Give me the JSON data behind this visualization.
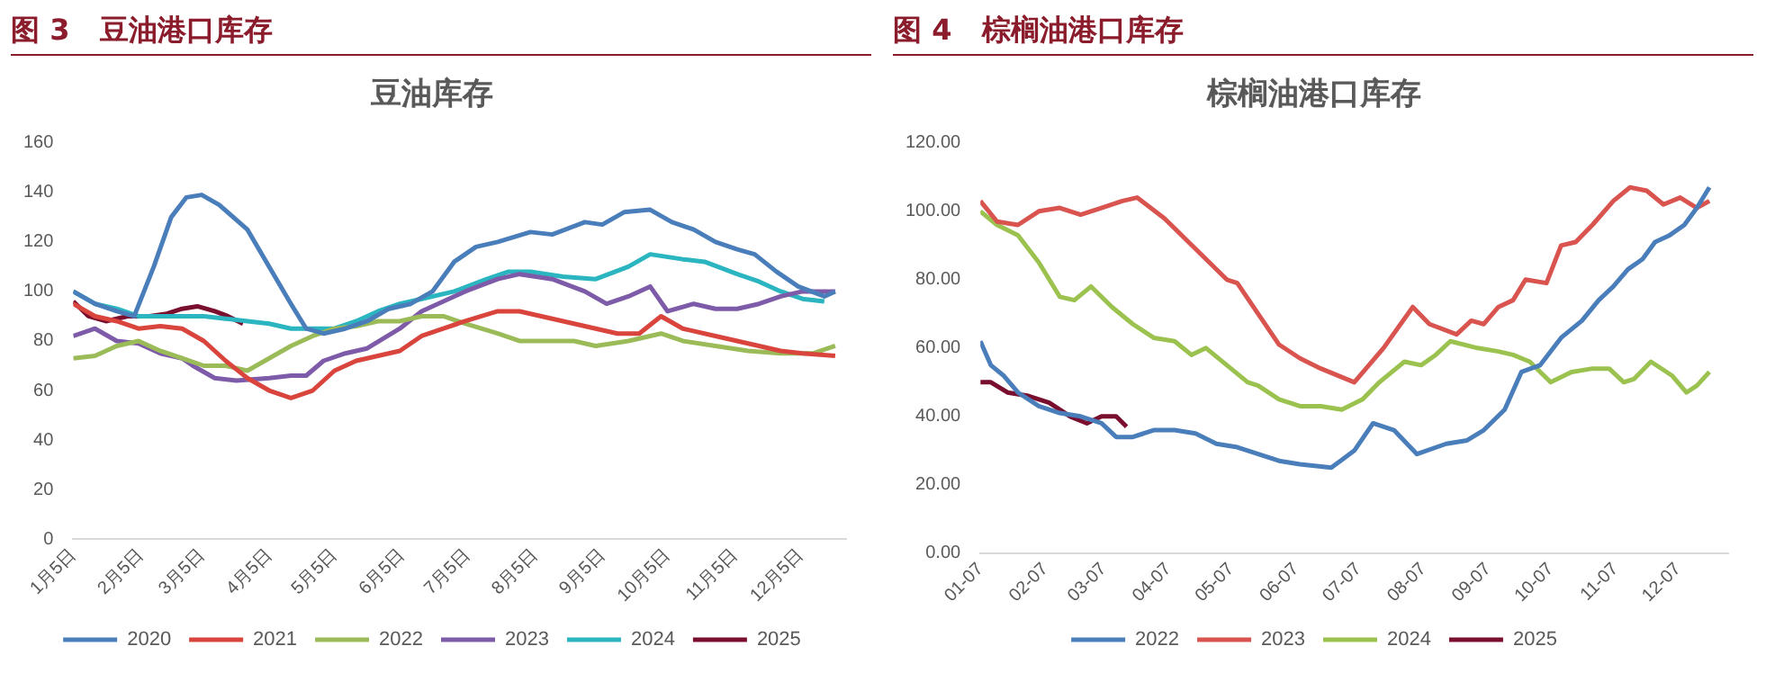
{
  "chart_data": [
    {
      "type": "line",
      "title": "图 3   豆油港口库存",
      "subtitle": "豆油库存",
      "legend": "bottom",
      "marker": "none",
      "line_style": "solid",
      "xlim": [
        "--01-05",
        "--12-26"
      ],
      "xticks": [
        {
          "value": "--01-05",
          "label": "1月5日"
        },
        {
          "value": "--02-05",
          "label": "2月5日"
        },
        {
          "value": "--03-05",
          "label": "3月5日"
        },
        {
          "value": "--04-05",
          "label": "4月5日"
        },
        {
          "value": "--05-05",
          "label": "5月5日"
        },
        {
          "value": "--06-05",
          "label": "6月5日"
        },
        {
          "value": "--07-05",
          "label": "7月5日"
        },
        {
          "value": "--08-05",
          "label": "8月5日"
        },
        {
          "value": "--09-05",
          "label": "9月5日"
        },
        {
          "value": "--10-05",
          "label": "10月5日"
        },
        {
          "value": "--11-05",
          "label": "11月5日"
        },
        {
          "value": "--12-05",
          "label": "12月5日"
        }
      ],
      "ylim": [
        0,
        160
      ],
      "yticks": [
        0,
        20,
        40,
        60,
        80,
        100,
        120,
        140,
        160
      ],
      "series": [
        {
          "name": "2020",
          "color": "#4a7ebb",
          "x": [
            "--01-05",
            "--01-15",
            "--01-25",
            "--02-02",
            "--02-11",
            "--02-19",
            "--02-26",
            "--03-05",
            "--03-13",
            "--03-26",
            "--04-05",
            "--04-15",
            "--04-22",
            "--04-30",
            "--05-10",
            "--05-20",
            "--05-30",
            "--06-09",
            "--06-19",
            "--06-29",
            "--07-09",
            "--07-19",
            "--08-03",
            "--08-13",
            "--08-28",
            "--09-05",
            "--09-15",
            "--09-27",
            "--10-07",
            "--10-17",
            "--10-27",
            "--11-06",
            "--11-14",
            "--11-24",
            "--12-04",
            "--12-16",
            "--12-21"
          ],
          "values": [
            100,
            95,
            92,
            90,
            110,
            130,
            138,
            139,
            135,
            125,
            110,
            95,
            85,
            83,
            85,
            88,
            93,
            95,
            100,
            112,
            118,
            120,
            124,
            123,
            128,
            127,
            132,
            133,
            128,
            125,
            120,
            117,
            115,
            108,
            102,
            98,
            100
          ]
        },
        {
          "name": "2021",
          "color": "#d9443d",
          "x": [
            "--01-05",
            "--01-15",
            "--01-25",
            "--02-04",
            "--02-14",
            "--02-24",
            "--03-06",
            "--03-16",
            "--03-26",
            "--04-05",
            "--04-15",
            "--04-25",
            "--05-05",
            "--05-15",
            "--05-25",
            "--06-04",
            "--06-14",
            "--06-24",
            "--07-04",
            "--07-19",
            "--07-29",
            "--08-13",
            "--08-28",
            "--09-12",
            "--09-22",
            "--10-02",
            "--10-12",
            "--10-27",
            "--11-06",
            "--11-16",
            "--11-26",
            "--12-06",
            "--12-21"
          ],
          "values": [
            95,
            90,
            88,
            85,
            86,
            85,
            80,
            72,
            65,
            60,
            57,
            60,
            68,
            72,
            74,
            76,
            82,
            85,
            88,
            92,
            92,
            89,
            86,
            83,
            83,
            90,
            85,
            82,
            80,
            78,
            76,
            75,
            74
          ]
        },
        {
          "name": "2022",
          "color": "#9bbb59",
          "x": [
            "--01-05",
            "--01-15",
            "--01-25",
            "--02-04",
            "--02-14",
            "--02-24",
            "--03-06",
            "--03-16",
            "--03-26",
            "--04-05",
            "--04-15",
            "--04-25",
            "--05-05",
            "--05-15",
            "--05-25",
            "--06-04",
            "--06-14",
            "--06-24",
            "--07-04",
            "--07-19",
            "--07-29",
            "--08-08",
            "--08-23",
            "--09-02",
            "--09-17",
            "--10-02",
            "--10-12",
            "--10-27",
            "--11-11",
            "--11-26",
            "--12-11",
            "--12-21"
          ],
          "values": [
            73,
            74,
            78,
            80,
            76,
            73,
            70,
            70,
            68,
            73,
            78,
            82,
            85,
            86,
            88,
            88,
            90,
            90,
            87,
            83,
            80,
            80,
            80,
            78,
            80,
            83,
            80,
            78,
            76,
            75,
            75,
            78
          ]
        },
        {
          "name": "2023",
          "color": "#7e5ba8",
          "x": [
            "--01-05",
            "--01-15",
            "--01-25",
            "--02-04",
            "--02-14",
            "--02-24",
            "--03-01",
            "--03-11",
            "--03-21",
            "--04-05",
            "--04-15",
            "--04-22",
            "--04-30",
            "--05-10",
            "--05-20",
            "--06-04",
            "--06-14",
            "--06-24",
            "--07-04",
            "--07-19",
            "--07-29",
            "--08-13",
            "--08-28",
            "--09-07",
            "--09-17",
            "--09-27",
            "--10-05",
            "--10-17",
            "--10-27",
            "--11-06",
            "--11-16",
            "--11-26",
            "--12-06",
            "--12-21"
          ],
          "values": [
            82,
            85,
            80,
            79,
            75,
            73,
            70,
            65,
            64,
            65,
            66,
            66,
            72,
            75,
            77,
            85,
            92,
            96,
            100,
            105,
            107,
            105,
            100,
            95,
            98,
            102,
            92,
            95,
            93,
            93,
            95,
            98,
            100,
            100
          ]
        },
        {
          "name": "2024",
          "color": "#2ab5c0",
          "x": [
            "--01-05",
            "--01-15",
            "--01-25",
            "--02-04",
            "--02-14",
            "--02-24",
            "--03-06",
            "--03-16",
            "--03-26",
            "--04-05",
            "--04-15",
            "--04-25",
            "--05-05",
            "--05-15",
            "--05-25",
            "--06-04",
            "--06-14",
            "--06-29",
            "--07-14",
            "--07-24",
            "--08-03",
            "--08-18",
            "--09-02",
            "--09-17",
            "--09-27",
            "--10-12",
            "--10-22",
            "--11-06",
            "--11-16",
            "--11-26",
            "--12-06",
            "--12-16"
          ],
          "values": [
            100,
            95,
            93,
            90,
            90,
            90,
            90,
            89,
            88,
            87,
            85,
            85,
            85,
            88,
            92,
            95,
            97,
            100,
            105,
            108,
            108,
            106,
            105,
            110,
            115,
            113,
            112,
            107,
            104,
            100,
            97,
            96
          ]
        },
        {
          "name": "2025",
          "color": "#7a0e2e",
          "x": [
            "--01-05",
            "--01-12",
            "--01-20",
            "--01-30",
            "--02-09",
            "--02-17",
            "--02-24",
            "--03-03",
            "--03-11",
            "--03-17",
            "--03-24"
          ],
          "values": [
            96,
            90,
            88,
            90,
            90,
            91,
            93,
            94,
            92,
            90,
            87
          ]
        }
      ]
    },
    {
      "type": "line",
      "title": "图 4   棕榈油港口库存",
      "subtitle": "棕榈油港口库存",
      "legend": "bottom",
      "marker": "none",
      "line_style": "solid",
      "xlim": [
        "--01-07",
        "--12-31"
      ],
      "xticks": [
        {
          "value": "--01-07",
          "label": "01-07"
        },
        {
          "value": "--02-07",
          "label": "02-07"
        },
        {
          "value": "--03-07",
          "label": "03-07"
        },
        {
          "value": "--04-07",
          "label": "04-07"
        },
        {
          "value": "--05-07",
          "label": "05-07"
        },
        {
          "value": "--06-07",
          "label": "06-07"
        },
        {
          "value": "--07-07",
          "label": "07-07"
        },
        {
          "value": "--08-07",
          "label": "08-07"
        },
        {
          "value": "--09-07",
          "label": "09-07"
        },
        {
          "value": "--10-07",
          "label": "10-07"
        },
        {
          "value": "--11-07",
          "label": "11-07"
        },
        {
          "value": "--12-07",
          "label": "12-07"
        }
      ],
      "ylim": [
        0,
        120
      ],
      "yticks": [
        {
          "value": 0,
          "label": "0.00"
        },
        {
          "value": 20,
          "label": "20.00"
        },
        {
          "value": 40,
          "label": "40.00"
        },
        {
          "value": 60,
          "label": "60.00"
        },
        {
          "value": 80,
          "label": "80.00"
        },
        {
          "value": 100,
          "label": "100.00"
        },
        {
          "value": 120,
          "label": "120.00"
        }
      ],
      "series": [
        {
          "name": "2022",
          "color": "#4a7ebb",
          "x": [
            "--01-07",
            "--01-12",
            "--01-18",
            "--01-25",
            "--02-04",
            "--02-14",
            "--02-24",
            "--03-06",
            "--03-13",
            "--03-21",
            "--03-31",
            "--04-10",
            "--04-20",
            "--04-30",
            "--05-10",
            "--05-20",
            "--05-30",
            "--06-09",
            "--06-24",
            "--07-05",
            "--07-14",
            "--07-24",
            "--08-04",
            "--08-18",
            "--08-28",
            "--09-05",
            "--09-15",
            "--09-23",
            "--10-02",
            "--10-12",
            "--10-22",
            "--10-30",
            "--11-06",
            "--11-13",
            "--11-20",
            "--11-26",
            "--12-03",
            "--12-10",
            "--12-16",
            "--12-22"
          ],
          "values": [
            62,
            55,
            52,
            47,
            43,
            41,
            40,
            38,
            34,
            34,
            36,
            36,
            35,
            32,
            31,
            29,
            27,
            26,
            25,
            30,
            38,
            36,
            29,
            32,
            33,
            36,
            42,
            53,
            55,
            63,
            68,
            74,
            78,
            83,
            86,
            91,
            93,
            96,
            101,
            107
          ]
        },
        {
          "name": "2023",
          "color": "#d9534f",
          "x": [
            "--01-07",
            "--01-15",
            "--01-25",
            "--02-04",
            "--02-14",
            "--02-24",
            "--03-06",
            "--03-16",
            "--03-23",
            "--04-05",
            "--04-15",
            "--04-25",
            "--05-05",
            "--05-10",
            "--05-20",
            "--05-30",
            "--06-09",
            "--06-19",
            "--07-05",
            "--07-12",
            "--07-19",
            "--08-02",
            "--08-10",
            "--08-23",
            "--08-30",
            "--09-05",
            "--09-12",
            "--09-19",
            "--09-25",
            "--10-05",
            "--10-12",
            "--10-19",
            "--10-27",
            "--11-06",
            "--11-14",
            "--11-22",
            "--11-30",
            "--12-08",
            "--12-16",
            "--12-22"
          ],
          "values": [
            103,
            97,
            96,
            100,
            101,
            99,
            101,
            103,
            104,
            98,
            92,
            86,
            80,
            79,
            70,
            61,
            57,
            54,
            50,
            55,
            60,
            72,
            67,
            64,
            68,
            67,
            72,
            74,
            80,
            79,
            90,
            91,
            96,
            103,
            107,
            106,
            102,
            104,
            101,
            103
          ]
        },
        {
          "name": "2024",
          "color": "#9bc24f",
          "x": [
            "--01-07",
            "--01-15",
            "--01-25",
            "--02-04",
            "--02-14",
            "--02-21",
            "--03-01",
            "--03-11",
            "--03-21",
            "--03-31",
            "--04-10",
            "--04-18",
            "--04-25",
            "--05-05",
            "--05-15",
            "--05-20",
            "--05-30",
            "--06-09",
            "--06-19",
            "--06-29",
            "--07-09",
            "--07-17",
            "--07-29",
            "--08-06",
            "--08-13",
            "--08-20",
            "--09-02",
            "--09-12",
            "--09-19",
            "--09-27",
            "--10-07",
            "--10-17",
            "--10-27",
            "--11-04",
            "--11-11",
            "--11-16",
            "--11-24",
            "--12-04",
            "--12-11",
            "--12-16",
            "--12-22"
          ],
          "values": [
            100,
            96,
            93,
            85,
            75,
            74,
            78,
            72,
            67,
            63,
            62,
            58,
            60,
            55,
            50,
            49,
            45,
            43,
            43,
            42,
            45,
            50,
            56,
            55,
            58,
            62,
            60,
            59,
            58,
            56,
            50,
            53,
            54,
            54,
            50,
            51,
            56,
            52,
            47,
            49,
            53
          ]
        },
        {
          "name": "2025",
          "color": "#7a0e2e",
          "x": [
            "--01-07",
            "--01-12",
            "--01-20",
            "--01-30",
            "--02-09",
            "--02-19",
            "--02-27",
            "--03-06",
            "--03-13",
            "--03-18"
          ],
          "values": [
            50,
            50,
            47,
            46,
            44,
            40,
            38,
            40,
            40,
            37
          ]
        }
      ]
    }
  ]
}
